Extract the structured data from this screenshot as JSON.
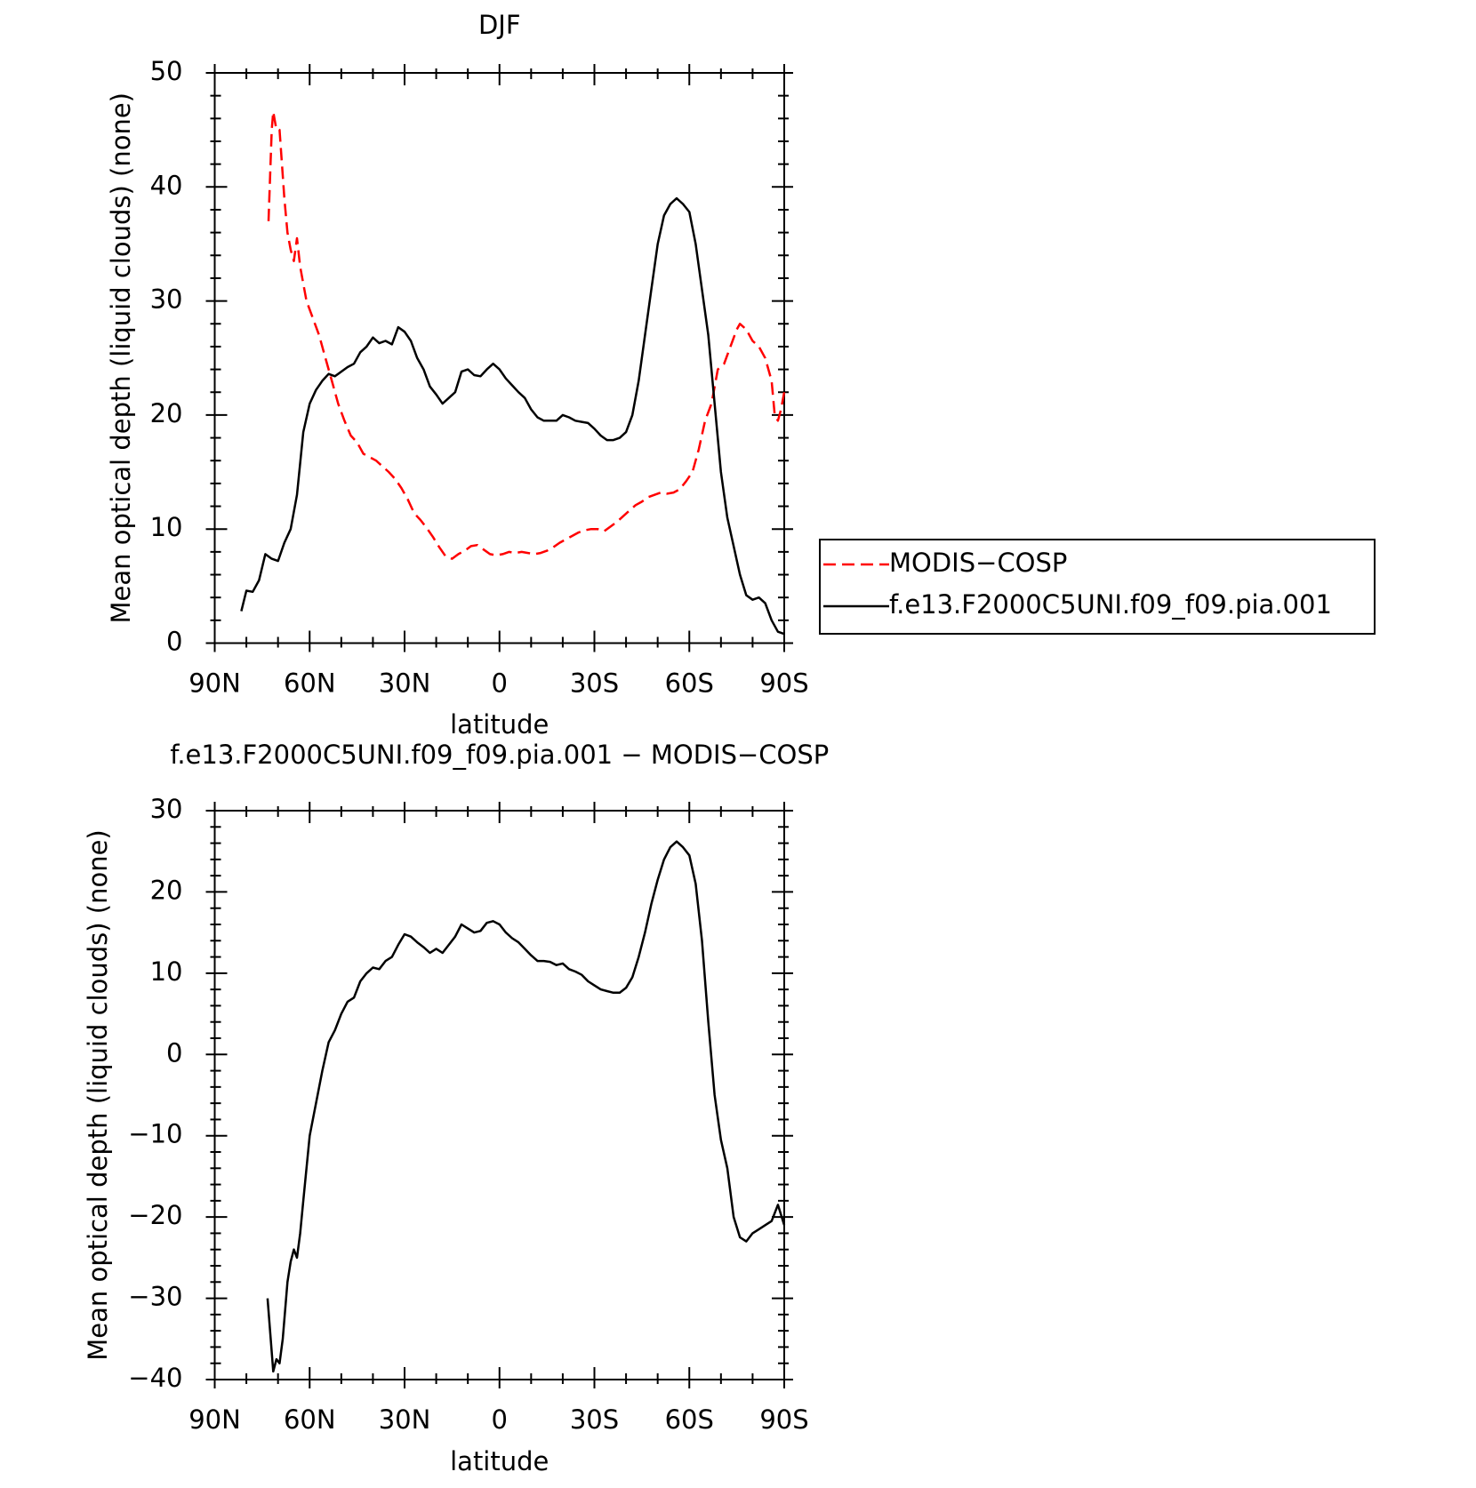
{
  "chart_data": [
    {
      "type": "line",
      "title": "DJF",
      "xlabel": "latitude",
      "ylabel": "Mean optical depth (liquid clouds) (none)",
      "xlim": [
        90,
        -90
      ],
      "xticks": [
        {
          "value": 90,
          "label": "90N"
        },
        {
          "value": 60,
          "label": "60N"
        },
        {
          "value": 30,
          "label": "30N"
        },
        0,
        {
          "value": -30,
          "label": "30S"
        },
        {
          "value": -60,
          "label": "60S"
        },
        {
          "value": -90,
          "label": "90S"
        }
      ],
      "ylim": [
        0,
        50
      ],
      "yticks": [
        0,
        10,
        20,
        30,
        40,
        50
      ],
      "legend": "right",
      "series": [
        {
          "name": "MODIS−COSP",
          "color": "#ff0000",
          "dash": true,
          "x": [
            73,
            72,
            71.5,
            70.5,
            69.5,
            68,
            67,
            66,
            65,
            64,
            63,
            61,
            59,
            57,
            55,
            53,
            51,
            49,
            47,
            45,
            43,
            41,
            39,
            37,
            35,
            33,
            31,
            29,
            27,
            25,
            23,
            21,
            19,
            17,
            15,
            13,
            11,
            9,
            7,
            5,
            3,
            1,
            -1,
            -3,
            -5,
            -7,
            -9,
            -11,
            -13,
            -15,
            -17,
            -19,
            -21,
            -23,
            -25,
            -27,
            -29,
            -31,
            -33,
            -35,
            -37,
            -39,
            -41,
            -43,
            -45,
            -47,
            -49,
            -51,
            -53,
            -55,
            -57,
            -59,
            -61,
            -63,
            -65,
            -67,
            -69,
            -71,
            -73,
            -75,
            -76,
            -78,
            -80,
            -82,
            -84,
            -86,
            -87,
            -88,
            -89,
            -90
          ],
          "values": [
            37,
            45,
            46.6,
            45,
            45,
            39,
            36,
            34.5,
            33.5,
            35.5,
            33,
            30,
            28.5,
            27,
            25,
            23,
            21,
            19.5,
            18.2,
            17.6,
            16.6,
            16.3,
            16,
            15.5,
            15,
            14.4,
            13.6,
            12.6,
            11.4,
            10.8,
            10.1,
            9.3,
            8.4,
            7.6,
            7.4,
            7.8,
            8.1,
            8.5,
            8.6,
            8.2,
            7.8,
            7.7,
            7.8,
            8,
            7.9,
            8,
            7.9,
            7.8,
            7.9,
            8.1,
            8.4,
            8.8,
            9.1,
            9.4,
            9.7,
            9.9,
            10,
            10,
            9.8,
            10.2,
            10.6,
            11.1,
            11.6,
            12.1,
            12.4,
            12.8,
            13,
            13.2,
            13.1,
            13.2,
            13.5,
            14.2,
            15,
            17,
            19.5,
            21,
            24,
            24.5,
            26,
            27.5,
            28,
            27.5,
            26.5,
            26,
            25,
            23,
            20,
            19.5,
            20.5,
            22
          ]
        },
        {
          "name": "f.e13.F2000C5UNI.f09_f09.pia.001",
          "color": "#000000",
          "dash": false,
          "x": [
            81.6,
            80,
            78,
            76,
            74,
            72,
            70,
            68,
            66,
            64,
            62,
            60,
            58,
            56,
            54,
            52,
            50,
            48,
            46,
            44,
            42,
            40,
            38,
            36,
            34,
            32,
            30,
            28,
            26,
            24,
            22,
            20,
            18,
            16,
            14,
            12,
            10,
            8,
            6,
            4,
            2,
            0,
            -2,
            -4,
            -6,
            -8,
            -10,
            -12,
            -14,
            -16,
            -18,
            -20,
            -22,
            -24,
            -26,
            -28,
            -30,
            -32,
            -34,
            -36,
            -38,
            -40,
            -42,
            -44,
            -46,
            -48,
            -50,
            -52,
            -54,
            -56,
            -58,
            -60,
            -62,
            -64,
            -66,
            -68,
            -70,
            -72,
            -74,
            -76,
            -78,
            -80,
            -82,
            -84,
            -86,
            -88,
            -90
          ],
          "values": [
            2.8,
            4.6,
            4.5,
            5.5,
            7.8,
            7.4,
            7.2,
            8.8,
            10,
            13,
            18.5,
            21,
            22.2,
            23,
            23.6,
            23.4,
            23.8,
            24.2,
            24.5,
            25.5,
            26,
            26.8,
            26.3,
            26.5,
            26.2,
            27.7,
            27.3,
            26.5,
            25,
            24,
            22.5,
            21.8,
            21,
            21.5,
            22,
            23.8,
            24,
            23.5,
            23.4,
            24,
            24.5,
            24,
            23.2,
            22.6,
            22,
            21.5,
            20.5,
            19.8,
            19.5,
            19.5,
            19.5,
            20,
            19.8,
            19.5,
            19.4,
            19.3,
            18.8,
            18.2,
            17.8,
            17.8,
            18,
            18.5,
            20,
            23,
            27,
            31,
            35,
            37.5,
            38.5,
            39,
            38.5,
            37.8,
            35,
            31,
            27,
            21,
            15,
            11,
            8.5,
            6,
            4.2,
            3.8,
            4,
            3.5,
            2,
            1,
            0.8
          ]
        }
      ]
    },
    {
      "type": "line",
      "title": "f.e13.F2000C5UNI.f09_f09.pia.001 − MODIS−COSP",
      "xlabel": "latitude",
      "ylabel": "Mean optical depth (liquid clouds) (none)",
      "xlim": [
        90,
        -90
      ],
      "xticks": [
        {
          "value": 90,
          "label": "90N"
        },
        {
          "value": 60,
          "label": "60N"
        },
        {
          "value": 30,
          "label": "30N"
        },
        0,
        {
          "value": -30,
          "label": "30S"
        },
        {
          "value": -60,
          "label": "60S"
        },
        {
          "value": -90,
          "label": "90S"
        }
      ],
      "ylim": [
        -40,
        30
      ],
      "yticks": [
        {
          "value": -40,
          "label": "−40"
        },
        {
          "value": -30,
          "label": "−30"
        },
        {
          "value": -20,
          "label": "−20"
        },
        {
          "value": -10,
          "label": "−10"
        },
        0,
        10,
        20,
        30
      ],
      "series": [
        {
          "color": "#000000",
          "dash": false,
          "x": [
            73.3,
            71.5,
            70.5,
            69.5,
            68.5,
            67,
            66,
            65,
            64,
            63,
            62,
            61,
            60,
            58,
            56,
            54,
            52,
            50,
            48,
            46,
            44,
            42,
            40,
            38,
            36,
            34,
            32,
            30,
            28,
            26,
            24,
            22,
            20,
            18,
            16,
            14,
            12,
            10,
            8,
            6,
            4,
            2,
            0,
            -2,
            -4,
            -6,
            -8,
            -10,
            -12,
            -14,
            -16,
            -18,
            -20,
            -22,
            -24,
            -26,
            -28,
            -30,
            -32,
            -34,
            -36,
            -38,
            -40,
            -42,
            -44,
            -46,
            -48,
            -50,
            -52,
            -54,
            -56,
            -58,
            -60,
            -62,
            -64,
            -66,
            -68,
            -70,
            -72,
            -74,
            -76,
            -78,
            -80,
            -82,
            -84,
            -86,
            -88,
            -90
          ],
          "values": [
            -30,
            -39,
            -37.5,
            -38,
            -35,
            -28,
            -25.5,
            -24,
            -25,
            -22,
            -18,
            -14,
            -10,
            -6,
            -2,
            1.5,
            3,
            5,
            6.5,
            7,
            9,
            10,
            10.7,
            10.5,
            11.5,
            12,
            13.5,
            14.8,
            14.5,
            13.8,
            13.2,
            12.5,
            13,
            12.5,
            13.5,
            14.5,
            16,
            15.5,
            15,
            15.2,
            16.2,
            16.4,
            16,
            15,
            14.3,
            13.8,
            13,
            12.2,
            11.5,
            11.5,
            11.4,
            11,
            11.2,
            10.5,
            10.2,
            9.8,
            9,
            8.5,
            8,
            7.8,
            7.6,
            7.6,
            8.2,
            9.5,
            12,
            15,
            18.5,
            21.5,
            24,
            25.5,
            26.2,
            25.5,
            24.5,
            21,
            14,
            4,
            -5,
            -10.5,
            -14,
            -20,
            -22.5,
            -23,
            -22,
            -21.5,
            -21,
            -20.5,
            -18.5,
            -21
          ]
        }
      ]
    }
  ]
}
